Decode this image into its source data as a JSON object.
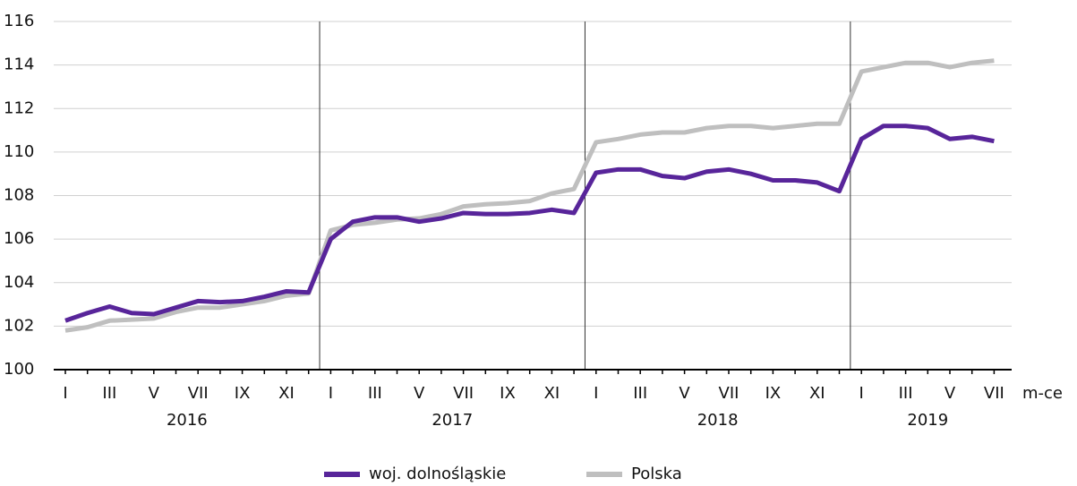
{
  "chart_data": {
    "type": "line",
    "x_axis_label": "m-ce",
    "categories": [
      "I",
      null,
      "III",
      null,
      "V",
      null,
      "VII",
      null,
      "IX",
      null,
      "XI",
      null,
      "I",
      null,
      "III",
      null,
      "V",
      null,
      "VII",
      null,
      "IX",
      null,
      "XI",
      null,
      "I",
      null,
      "III",
      null,
      "V",
      null,
      "VII",
      null,
      "IX",
      null,
      "XI",
      null,
      "I",
      null,
      "III",
      null,
      "V",
      null,
      "VII"
    ],
    "groups": [
      "2016",
      "2017",
      "2018",
      "2019"
    ],
    "ylim": [
      100,
      116
    ],
    "yticks": [
      100,
      102,
      104,
      106,
      108,
      110,
      112,
      114,
      116
    ],
    "grid": true,
    "legend": "bottom",
    "series": [
      {
        "name": "woj. dolnośląskie",
        "color": "#58259a",
        "values": [
          102.25,
          102.6,
          102.9,
          102.6,
          102.55,
          102.85,
          103.15,
          103.1,
          103.15,
          103.35,
          103.6,
          103.55,
          106.0,
          106.8,
          107.0,
          107.0,
          106.8,
          106.95,
          107.2,
          107.15,
          107.15,
          107.2,
          107.35,
          107.2,
          109.05,
          109.2,
          109.2,
          108.9,
          108.8,
          109.1,
          109.2,
          109.0,
          108.7,
          108.7,
          108.6,
          108.2,
          110.6,
          111.2,
          111.2,
          111.1,
          110.6,
          110.7,
          110.5
        ]
      },
      {
        "name": "Polska",
        "color": "#bfbfbf",
        "values": [
          101.8,
          101.95,
          102.25,
          102.3,
          102.35,
          102.65,
          102.85,
          102.85,
          103.0,
          103.15,
          103.4,
          103.5,
          106.4,
          106.65,
          106.75,
          106.9,
          106.95,
          107.15,
          107.5,
          107.6,
          107.65,
          107.75,
          108.1,
          108.3,
          110.45,
          110.6,
          110.8,
          110.9,
          110.9,
          111.1,
          111.2,
          111.2,
          111.1,
          111.2,
          111.3,
          111.3,
          113.7,
          113.9,
          114.1,
          114.1,
          113.9,
          114.1,
          114.2
        ]
      }
    ]
  }
}
